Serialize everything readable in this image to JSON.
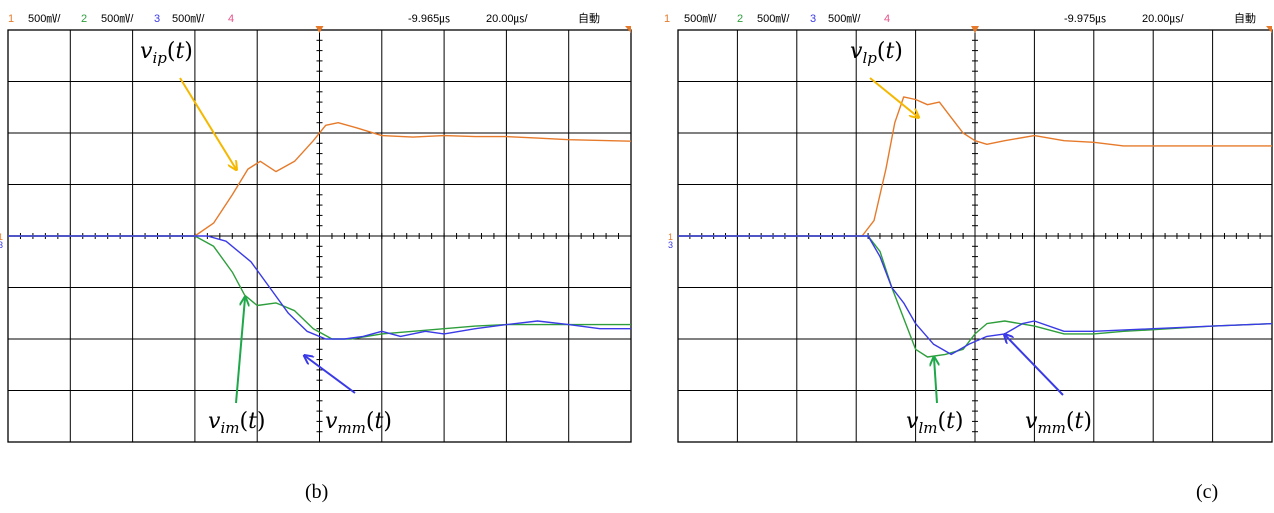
{
  "colors": {
    "ch1": "#e67a2a",
    "ch2": "#2e9e3c",
    "ch3": "#3a3ae6",
    "ch4": "#e8508a",
    "grid": "#000000",
    "arrow_ip": "#f5b800",
    "arrow_im": "#1fa84a",
    "arrow_mm": "#3a3ae6"
  },
  "chart_data": [
    {
      "type": "line",
      "caption": "(b)",
      "header": {
        "ch1": "1",
        "ch1_scale": "500㎷/",
        "ch2": "2",
        "ch2_scale": "500㎷/",
        "ch3": "3",
        "ch3_scale": "500㎷/",
        "ch4": "4",
        "offset": "-9.965㎲",
        "timebase": "20.00㎲/",
        "mode": "自動"
      },
      "grid": true,
      "divisions": {
        "x": 10,
        "y": 8
      },
      "xlim": [
        0,
        10
      ],
      "ylim": [
        -4,
        4
      ],
      "series": [
        {
          "name": "v_ip(t)",
          "color_key": "ch1",
          "x": [
            0,
            3.0,
            3.3,
            3.6,
            3.85,
            4.05,
            4.3,
            4.6,
            4.9,
            5.1,
            5.3,
            5.6,
            6.0,
            6.5,
            7.0,
            7.5,
            8.0,
            8.5,
            9.0,
            10
          ],
          "y": [
            0,
            0,
            0.25,
            0.8,
            1.3,
            1.45,
            1.25,
            1.45,
            1.85,
            2.15,
            2.2,
            2.1,
            1.95,
            1.92,
            1.95,
            1.93,
            1.93,
            1.9,
            1.87,
            1.84
          ]
        },
        {
          "name": "v_im(t)",
          "color_key": "ch2",
          "x": [
            0,
            3.0,
            3.3,
            3.6,
            3.8,
            4.0,
            4.3,
            4.6,
            4.9,
            5.2,
            5.5,
            6.0,
            6.5,
            7.0,
            7.5,
            8.0,
            8.5,
            9.0,
            9.5,
            10
          ],
          "y": [
            0,
            0,
            -0.2,
            -0.7,
            -1.15,
            -1.35,
            -1.3,
            -1.45,
            -1.8,
            -2.0,
            -2.0,
            -1.9,
            -1.85,
            -1.8,
            -1.75,
            -1.72,
            -1.72,
            -1.72,
            -1.72,
            -1.72
          ]
        },
        {
          "name": "v_mm(t)",
          "color_key": "ch3",
          "x": [
            0,
            3.2,
            3.5,
            3.9,
            4.2,
            4.5,
            4.8,
            5.1,
            5.4,
            5.7,
            6.0,
            6.3,
            6.7,
            7.0,
            7.5,
            8.0,
            8.5,
            9.0,
            9.5,
            10
          ],
          "y": [
            0,
            0,
            -0.1,
            -0.5,
            -1.0,
            -1.5,
            -1.85,
            -2.0,
            -2.0,
            -1.95,
            -1.85,
            -1.95,
            -1.85,
            -1.9,
            -1.8,
            -1.72,
            -1.65,
            -1.72,
            -1.8,
            -1.8
          ]
        }
      ],
      "annotations": [
        {
          "label": "v_ip(t)",
          "color_key": "arrow_ip"
        },
        {
          "label": "v_im(t)",
          "color_key": "arrow_im"
        },
        {
          "label": "v_mm(t)",
          "color_key": "arrow_mm"
        }
      ]
    },
    {
      "type": "line",
      "caption": "(c)",
      "header": {
        "ch1": "1",
        "ch1_scale": "500㎷/",
        "ch2": "2",
        "ch2_scale": "500㎷/",
        "ch3": "3",
        "ch3_scale": "500㎷/",
        "ch4": "4",
        "offset": "-9.975㎲",
        "timebase": "20.00㎲/",
        "mode": "自動"
      },
      "grid": true,
      "divisions": {
        "x": 10,
        "y": 8
      },
      "xlim": [
        0,
        10
      ],
      "ylim": [
        -4,
        4
      ],
      "series": [
        {
          "name": "v_lp(t)",
          "color_key": "ch1",
          "x": [
            0,
            3.1,
            3.3,
            3.5,
            3.65,
            3.8,
            4.0,
            4.2,
            4.4,
            4.6,
            4.8,
            5.0,
            5.2,
            5.5,
            6.0,
            6.5,
            7.0,
            7.5,
            8.0,
            10
          ],
          "y": [
            0,
            0,
            0.3,
            1.3,
            2.2,
            2.7,
            2.65,
            2.55,
            2.6,
            2.3,
            2.0,
            1.85,
            1.78,
            1.85,
            1.95,
            1.85,
            1.82,
            1.75,
            1.75,
            1.75
          ]
        },
        {
          "name": "v_lm(t)",
          "color_key": "ch2",
          "x": [
            0,
            3.2,
            3.4,
            3.6,
            3.8,
            4.0,
            4.2,
            4.5,
            4.8,
            5.0,
            5.2,
            5.5,
            6.0,
            6.5,
            7.0,
            7.5,
            8.0,
            9.0,
            10
          ],
          "y": [
            0,
            0,
            -0.3,
            -1.0,
            -1.6,
            -2.2,
            -2.35,
            -2.3,
            -2.2,
            -1.9,
            -1.7,
            -1.65,
            -1.75,
            -1.9,
            -1.9,
            -1.85,
            -1.82,
            -1.75,
            -1.7
          ]
        },
        {
          "name": "v_mm(t)",
          "color_key": "ch3",
          "x": [
            0,
            3.2,
            3.4,
            3.6,
            3.8,
            4.0,
            4.3,
            4.6,
            4.9,
            5.2,
            5.5,
            5.8,
            6.0,
            6.5,
            7.0,
            8.0,
            9.0,
            10
          ],
          "y": [
            0,
            0,
            -0.4,
            -1.0,
            -1.3,
            -1.7,
            -2.1,
            -2.3,
            -2.1,
            -1.95,
            -1.9,
            -1.7,
            -1.65,
            -1.85,
            -1.85,
            -1.8,
            -1.75,
            -1.7
          ]
        }
      ],
      "annotations": [
        {
          "label": "v_lp(t)",
          "color_key": "arrow_ip"
        },
        {
          "label": "v_lm(t)",
          "color_key": "arrow_im"
        },
        {
          "label": "v_mm(t)",
          "color_key": "arrow_mm"
        }
      ]
    }
  ]
}
